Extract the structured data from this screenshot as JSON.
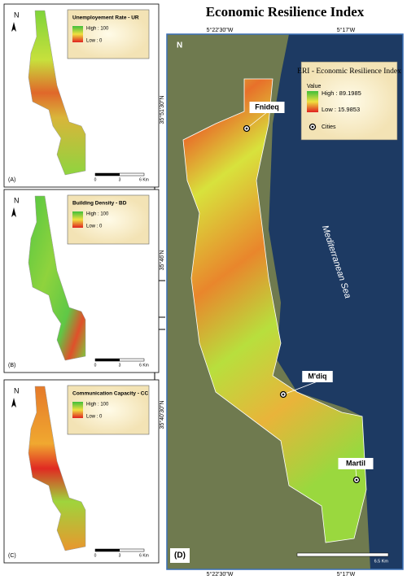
{
  "title": "Economic Resilience Index",
  "panels": [
    {
      "label": "(A)",
      "legend_title": "Unemployement Rate - UR",
      "high": "High : 100",
      "low": "Low : 0",
      "north": "N",
      "scale": [
        "0",
        "3",
        "6 Km"
      ]
    },
    {
      "label": "(B)",
      "legend_title": "Building Density - BD",
      "high": "High : 100",
      "low": "Low : 0",
      "north": "N",
      "scale": [
        "0",
        "3",
        "6 Km"
      ]
    },
    {
      "label": "(C)",
      "legend_title": "Communication Capacity - CC",
      "high": "High : 100",
      "low": "Low : 0",
      "north": "N",
      "scale": [
        "0",
        "3",
        "6 Km"
      ]
    }
  ],
  "main": {
    "label": "(D)",
    "north": "N",
    "top_coords": [
      "5°22'30\"W",
      "5°17'W"
    ],
    "bottom_coords": [
      "5°22'30\"W",
      "5°17'W"
    ],
    "left_coords": [
      "35°51'30\"N",
      "35°46'N",
      "35°40'30\"N"
    ],
    "legend": {
      "title": "ERI - Economic Resilience Index",
      "value": "Value",
      "high": "High : 89.1985",
      "low": "Low : 15.9853",
      "cities": "Cities"
    },
    "cities": [
      "Fnideq",
      "M'diq",
      "Martil"
    ],
    "sea": "Mediterranean Sea",
    "scale": "6.5 Km"
  }
}
